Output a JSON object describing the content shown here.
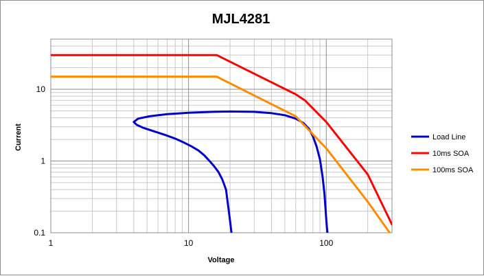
{
  "chart_data": {
    "type": "line",
    "title": "MJL4281",
    "xlabel": "Voltage",
    "ylabel": "Current",
    "xscale": "log",
    "yscale": "log",
    "xlim": [
      1,
      300
    ],
    "ylim": [
      0.1,
      50
    ],
    "x_tick_labels": [
      "1",
      "10",
      "100"
    ],
    "y_tick_labels": [
      "0.1",
      "1",
      "10"
    ],
    "grid": true,
    "legend_position": "right",
    "series": [
      {
        "name": "Load Line",
        "color": "#0000cc",
        "x": [
          20.5,
          19.6,
          18.7,
          17.6,
          16.5,
          15.3,
          14.2,
          13.0,
          11.8,
          10.5,
          9.3,
          8.0,
          6.8,
          5.6,
          4.7,
          4.2,
          4.0,
          4.3,
          5.2,
          7.0,
          10.0,
          15.0,
          20.0,
          30.0,
          40.0,
          50.0,
          60.0,
          68.0,
          75.0,
          80.0,
          85.0,
          90.0,
          94.0,
          97.0,
          99.0,
          100.0,
          101.0,
          101.5,
          102.0
        ],
        "y": [
          0.1,
          0.2,
          0.4,
          0.55,
          0.7,
          0.85,
          1.0,
          1.2,
          1.4,
          1.6,
          1.8,
          2.05,
          2.3,
          2.6,
          2.9,
          3.2,
          3.5,
          3.9,
          4.2,
          4.5,
          4.7,
          4.85,
          4.9,
          4.85,
          4.65,
          4.35,
          3.9,
          3.4,
          2.8,
          2.2,
          1.6,
          1.05,
          0.6,
          0.35,
          0.2,
          0.15,
          0.12,
          0.11,
          0.1
        ]
      },
      {
        "name": "10ms SOA",
        "color": "#ff0000",
        "x": [
          1,
          16,
          60,
          70,
          100,
          200,
          300
        ],
        "y": [
          30,
          30,
          8.5,
          7,
          3.5,
          0.65,
          0.13
        ]
      },
      {
        "name": "100ms SOA",
        "color": "#ff8c00",
        "x": [
          1,
          16,
          60,
          100,
          200,
          300
        ],
        "y": [
          15,
          15,
          4.2,
          1.5,
          0.27,
          0.09
        ]
      }
    ]
  }
}
